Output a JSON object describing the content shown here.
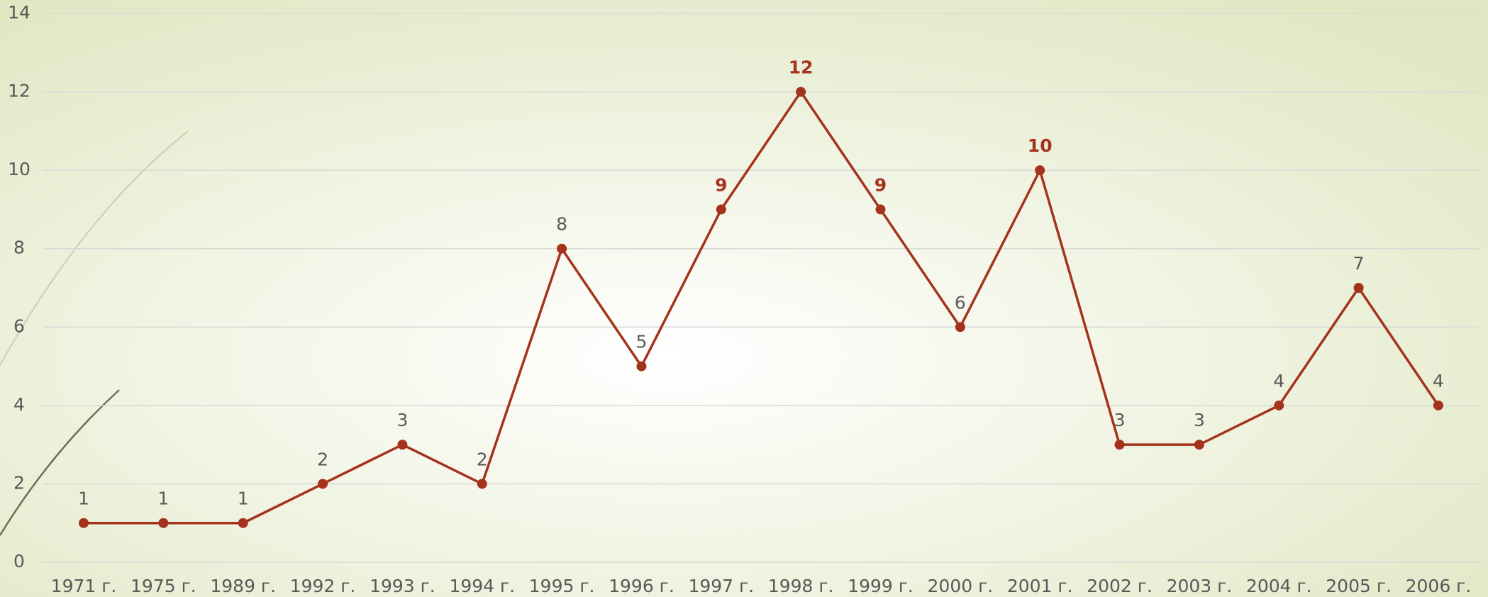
{
  "chart_data": {
    "type": "line",
    "categories": [
      "1971 г.",
      "1975 г.",
      "1989 г.",
      "1992 г.",
      "1993 г.",
      "1994 г.",
      "1995 г.",
      "1996 г.",
      "1997 г.",
      "1998 г.",
      "1999 г.",
      "2000 г.",
      "2001 г.",
      "2002 г.",
      "2003 г.",
      "2004 г.",
      "2005 г.",
      "2006 г."
    ],
    "series": [
      {
        "color": "#a5321c",
        "values": [
          1,
          1,
          1,
          2,
          3,
          2,
          8,
          5,
          9,
          12,
          9,
          6,
          10,
          3,
          3,
          4,
          7,
          4
        ],
        "label_colors": [
          "#595959",
          "#595959",
          "#595959",
          "#595959",
          "#595959",
          "#595959",
          "#595959",
          "#595959",
          "#a5321c",
          "#a5321c",
          "#a5321c",
          "#595959",
          "#a5321c",
          "#595959",
          "#595959",
          "#595959",
          "#595959",
          "#595959"
        ]
      }
    ],
    "ylim": [
      0,
      14
    ],
    "yticks": [
      0,
      2,
      4,
      6,
      8,
      10,
      12,
      14
    ],
    "grid": true
  }
}
